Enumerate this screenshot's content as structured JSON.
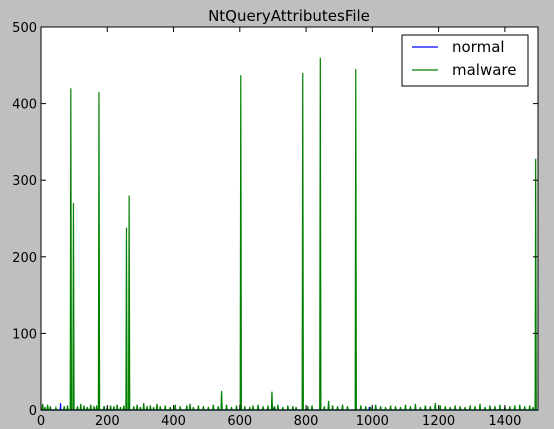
{
  "chart_data": {
    "type": "line",
    "title": "NtQueryAttributesFile",
    "xlabel": "",
    "ylabel": "",
    "xlim": [
      0,
      1500
    ],
    "ylim": [
      0,
      500
    ],
    "x_ticks": [
      0,
      200,
      400,
      600,
      800,
      1000,
      1200,
      1400
    ],
    "y_ticks": [
      0,
      100,
      200,
      300,
      400,
      500
    ],
    "grid": false,
    "legend_position": "top-right",
    "series": [
      {
        "name": "normal",
        "color": "#0000ff",
        "points": [
          [
            0,
            0
          ],
          [
            58,
            0
          ],
          [
            59,
            9
          ],
          [
            60,
            0
          ],
          [
            130,
            0
          ],
          [
            131,
            3
          ],
          [
            132,
            0
          ],
          [
            190,
            0
          ],
          [
            191,
            5
          ],
          [
            192,
            0
          ],
          [
            330,
            0
          ],
          [
            331,
            2
          ],
          [
            332,
            0
          ],
          [
            700,
            0
          ],
          [
            701,
            3
          ],
          [
            702,
            0
          ],
          [
            990,
            0
          ],
          [
            991,
            4
          ],
          [
            992,
            0
          ],
          [
            1010,
            0
          ],
          [
            1011,
            3
          ],
          [
            1012,
            0
          ],
          [
            1500,
            0
          ]
        ]
      },
      {
        "name": "malware",
        "color": "#008000",
        "spikes": [
          [
            5,
            8
          ],
          [
            12,
            4
          ],
          [
            20,
            7
          ],
          [
            28,
            5
          ],
          [
            45,
            3
          ],
          [
            70,
            5
          ],
          [
            80,
            6
          ],
          [
            90,
            420
          ],
          [
            98,
            270
          ],
          [
            110,
            5
          ],
          [
            120,
            8
          ],
          [
            130,
            6
          ],
          [
            140,
            4
          ],
          [
            150,
            7
          ],
          [
            160,
            5
          ],
          [
            168,
            6
          ],
          [
            175,
            415
          ],
          [
            190,
            5
          ],
          [
            200,
            4
          ],
          [
            210,
            6
          ],
          [
            220,
            5
          ],
          [
            230,
            7
          ],
          [
            240,
            4
          ],
          [
            250,
            6
          ],
          [
            258,
            238
          ],
          [
            266,
            280
          ],
          [
            280,
            5
          ],
          [
            290,
            7
          ],
          [
            300,
            4
          ],
          [
            310,
            9
          ],
          [
            320,
            5
          ],
          [
            330,
            6
          ],
          [
            340,
            4
          ],
          [
            350,
            8
          ],
          [
            360,
            5
          ],
          [
            375,
            6
          ],
          [
            390,
            4
          ],
          [
            405,
            7
          ],
          [
            420,
            5
          ],
          [
            440,
            6
          ],
          [
            450,
            8
          ],
          [
            460,
            4
          ],
          [
            475,
            6
          ],
          [
            490,
            5
          ],
          [
            505,
            4
          ],
          [
            520,
            7
          ],
          [
            535,
            5
          ],
          [
            545,
            25
          ],
          [
            560,
            7
          ],
          [
            575,
            4
          ],
          [
            590,
            6
          ],
          [
            603,
            437
          ],
          [
            615,
            5
          ],
          [
            630,
            4
          ],
          [
            640,
            6
          ],
          [
            655,
            7
          ],
          [
            670,
            5
          ],
          [
            685,
            6
          ],
          [
            697,
            24
          ],
          [
            705,
            5
          ],
          [
            715,
            7
          ],
          [
            730,
            4
          ],
          [
            745,
            6
          ],
          [
            760,
            5
          ],
          [
            770,
            4
          ],
          [
            790,
            440
          ],
          [
            805,
            5
          ],
          [
            818,
            6
          ],
          [
            843,
            460
          ],
          [
            855,
            5
          ],
          [
            868,
            12
          ],
          [
            880,
            6
          ],
          [
            895,
            5
          ],
          [
            910,
            7
          ],
          [
            925,
            5
          ],
          [
            950,
            445
          ],
          [
            965,
            6
          ],
          [
            980,
            5
          ],
          [
            995,
            4
          ],
          [
            1010,
            7
          ],
          [
            1025,
            5
          ],
          [
            1040,
            4
          ],
          [
            1055,
            6
          ],
          [
            1070,
            5
          ],
          [
            1085,
            4
          ],
          [
            1100,
            7
          ],
          [
            1115,
            5
          ],
          [
            1130,
            8
          ],
          [
            1145,
            4
          ],
          [
            1160,
            6
          ],
          [
            1175,
            5
          ],
          [
            1190,
            9
          ],
          [
            1205,
            6
          ],
          [
            1220,
            5
          ],
          [
            1235,
            4
          ],
          [
            1250,
            6
          ],
          [
            1265,
            5
          ],
          [
            1280,
            4
          ],
          [
            1295,
            6
          ],
          [
            1310,
            5
          ],
          [
            1325,
            8
          ],
          [
            1340,
            4
          ],
          [
            1355,
            6
          ],
          [
            1370,
            5
          ],
          [
            1385,
            7
          ],
          [
            1400,
            4
          ],
          [
            1415,
            5
          ],
          [
            1430,
            6
          ],
          [
            1445,
            7
          ],
          [
            1460,
            5
          ],
          [
            1475,
            6
          ],
          [
            1485,
            4
          ],
          [
            1493,
            328
          ]
        ]
      }
    ]
  }
}
